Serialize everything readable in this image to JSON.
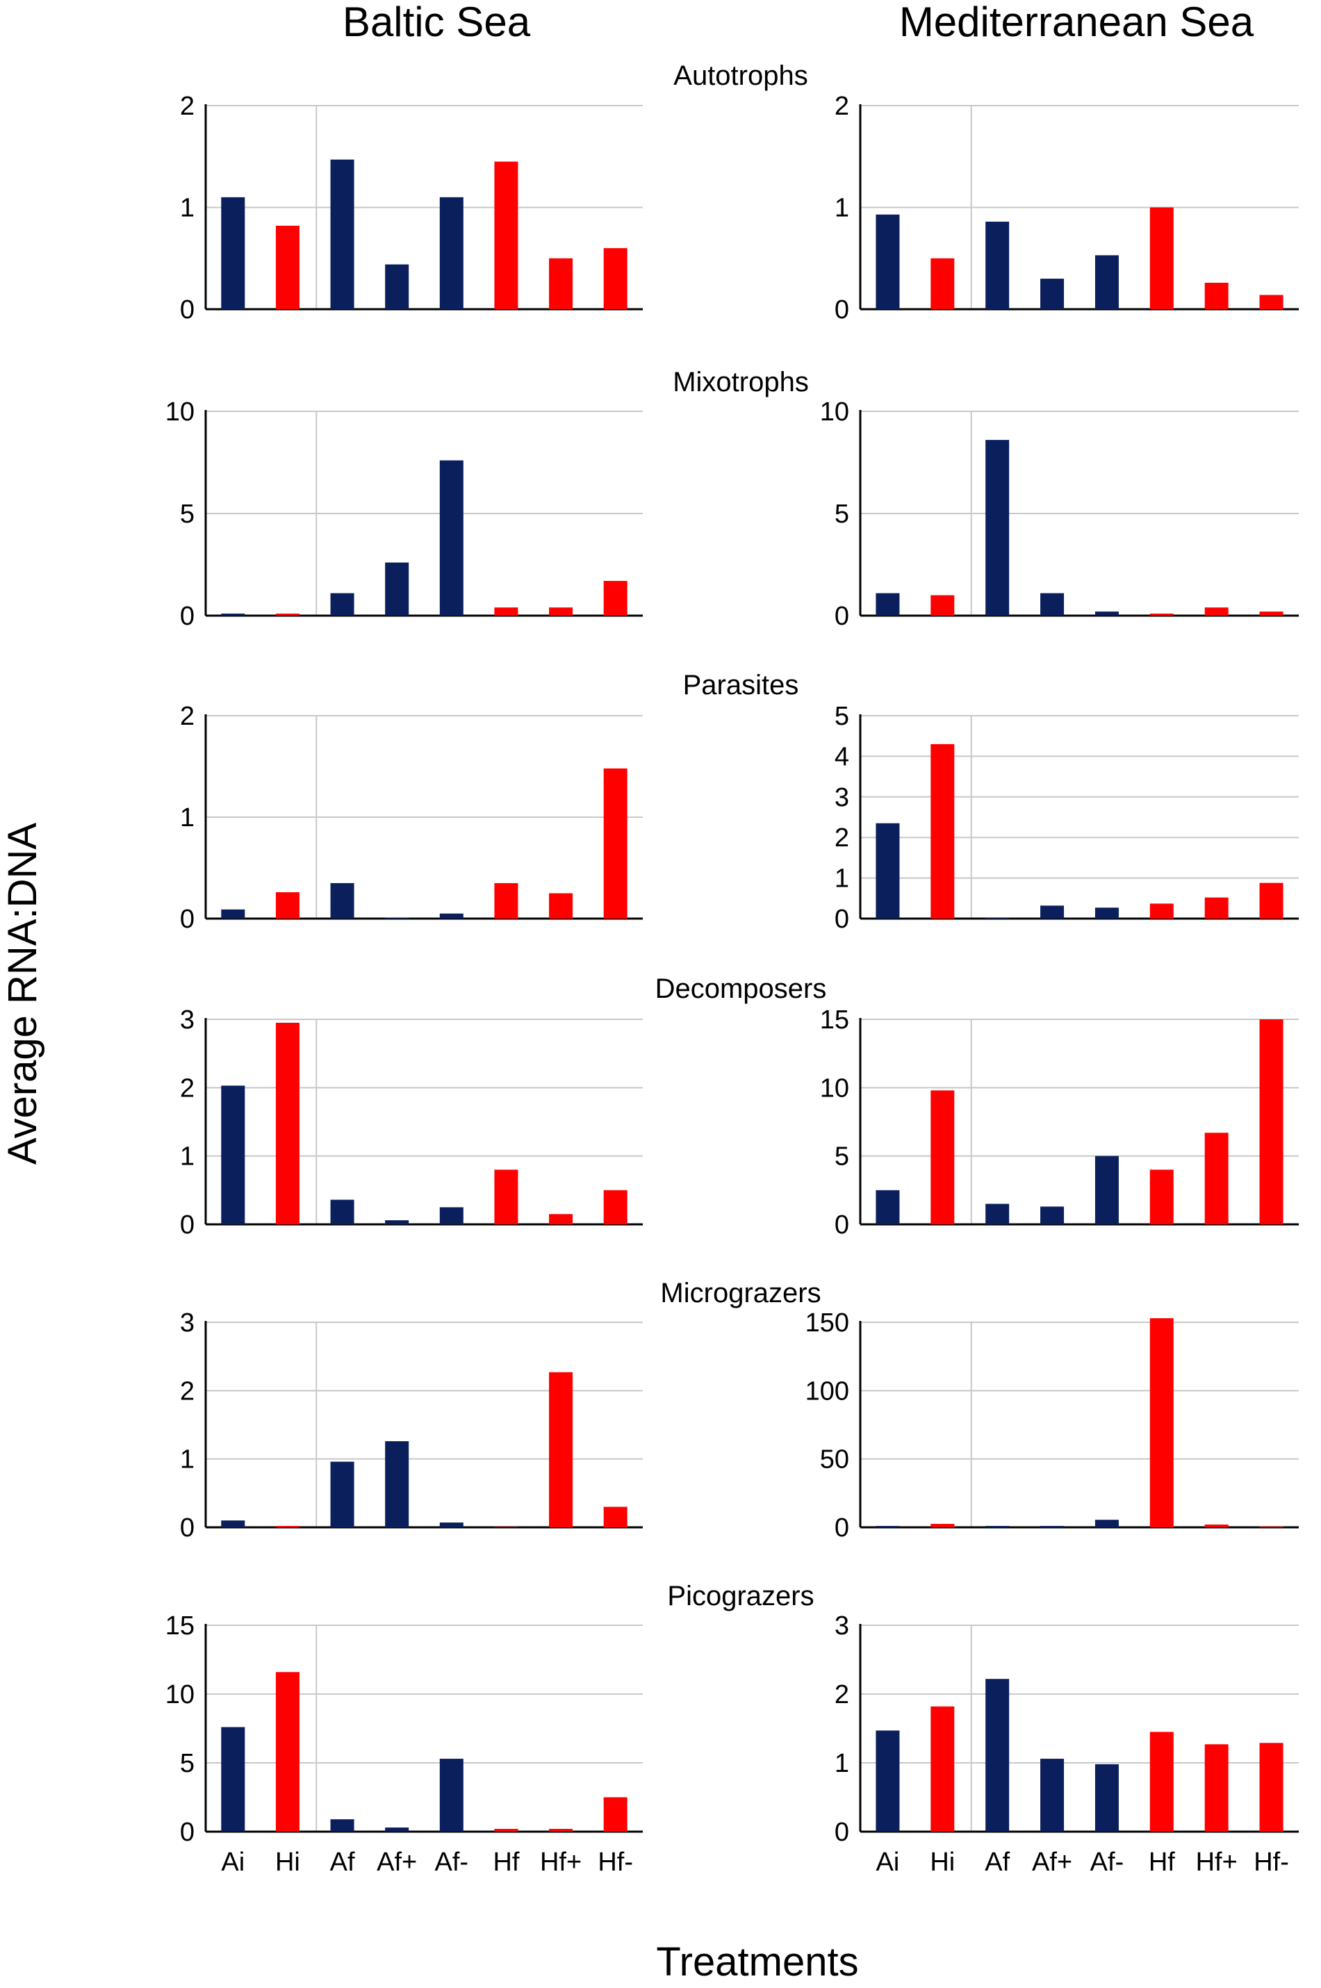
{
  "figure": {
    "column_titles": [
      "Baltic Sea",
      "Mediterranean Sea"
    ],
    "ylabel": "Average RNA:DNA",
    "xlabel": "Treatments",
    "colors": {
      "ambient": "#0a1f5c",
      "heated": "#ff0000",
      "grid": "#c8c8c8",
      "axis": "#000000"
    }
  },
  "chart_data": [
    {
      "type": "bar",
      "column": "Baltic Sea",
      "group": "Autotrophs",
      "title": "Autotrophs",
      "categories": [
        "Ai",
        "Hi",
        "Af",
        "Af+",
        "Af-",
        "Hf",
        "Hf+",
        "Hf-"
      ],
      "values": [
        1.1,
        0.82,
        1.47,
        0.44,
        1.1,
        1.45,
        0.5,
        0.6
      ],
      "ylim": [
        0,
        2
      ],
      "yticks": [
        "0",
        "1",
        "2"
      ],
      "show_xticklabels": false
    },
    {
      "type": "bar",
      "column": "Mediterranean Sea",
      "group": "Autotrophs",
      "title": "",
      "categories": [
        "Ai",
        "Hi",
        "Af",
        "Af+",
        "Af-",
        "Hf",
        "Hf+",
        "Hf-"
      ],
      "values": [
        0.93,
        0.5,
        0.86,
        0.3,
        0.53,
        1.0,
        0.26,
        0.14
      ],
      "ylim": [
        0,
        2
      ],
      "yticks": [
        "0",
        "1",
        "2"
      ],
      "show_xticklabels": false
    },
    {
      "type": "bar",
      "column": "Baltic Sea",
      "group": "Mixotrophs",
      "title": "Mixotrophs",
      "categories": [
        "Ai",
        "Hi",
        "Af",
        "Af+",
        "Af-",
        "Hf",
        "Hf+",
        "Hf-"
      ],
      "values": [
        0.1,
        0.1,
        1.1,
        2.6,
        7.6,
        0.4,
        0.4,
        1.7
      ],
      "ylim": [
        0,
        10
      ],
      "yticks": [
        "0",
        "5",
        "10"
      ],
      "show_xticklabels": false
    },
    {
      "type": "bar",
      "column": "Mediterranean Sea",
      "group": "Mixotrophs",
      "title": "",
      "categories": [
        "Ai",
        "Hi",
        "Af",
        "Af+",
        "Af-",
        "Hf",
        "Hf+",
        "Hf-"
      ],
      "values": [
        1.1,
        1.0,
        8.6,
        1.1,
        0.2,
        0.1,
        0.4,
        0.2
      ],
      "ylim": [
        0,
        10
      ],
      "yticks": [
        "0",
        "5",
        "10"
      ],
      "show_xticklabels": false
    },
    {
      "type": "bar",
      "column": "Baltic Sea",
      "group": "Parasites",
      "title": "Parasites",
      "categories": [
        "Ai",
        "Hi",
        "Af",
        "Af+",
        "Af-",
        "Hf",
        "Hf+",
        "Hf-"
      ],
      "values": [
        0.09,
        0.26,
        0.35,
        0.01,
        0.05,
        0.35,
        0.25,
        1.48
      ],
      "ylim": [
        0,
        2
      ],
      "yticks": [
        "0",
        "1",
        "2"
      ],
      "show_xticklabels": false
    },
    {
      "type": "bar",
      "column": "Mediterranean Sea",
      "group": "Parasites",
      "title": "",
      "categories": [
        "Ai",
        "Hi",
        "Af",
        "Af+",
        "Af-",
        "Hf",
        "Hf+",
        "Hf-"
      ],
      "values": [
        2.35,
        4.3,
        0.02,
        0.32,
        0.27,
        0.37,
        0.52,
        0.88
      ],
      "ylim": [
        0,
        5
      ],
      "yticks": [
        "0",
        "1",
        "2",
        "3",
        "4",
        "5"
      ],
      "show_xticklabels": false
    },
    {
      "type": "bar",
      "column": "Baltic Sea",
      "group": "Decomposers",
      "title": "Decomposers",
      "categories": [
        "Ai",
        "Hi",
        "Af",
        "Af+",
        "Af-",
        "Hf",
        "Hf+",
        "Hf-"
      ],
      "values": [
        2.03,
        2.95,
        0.36,
        0.06,
        0.25,
        0.8,
        0.15,
        0.5
      ],
      "ylim": [
        0,
        3
      ],
      "yticks": [
        "0",
        "1",
        "2",
        "3"
      ],
      "show_xticklabels": false
    },
    {
      "type": "bar",
      "column": "Mediterranean Sea",
      "group": "Decomposers",
      "title": "",
      "categories": [
        "Ai",
        "Hi",
        "Af",
        "Af+",
        "Af-",
        "Hf",
        "Hf+",
        "Hf-"
      ],
      "values": [
        2.5,
        9.8,
        1.5,
        1.3,
        5.0,
        4.0,
        6.7,
        15.0
      ],
      "ylim": [
        0,
        15
      ],
      "yticks": [
        "0",
        "5",
        "10",
        "15"
      ],
      "show_xticklabels": false
    },
    {
      "type": "bar",
      "column": "Baltic Sea",
      "group": "Micrograzers",
      "title": "Micrograzers",
      "categories": [
        "Ai",
        "Hi",
        "Af",
        "Af+",
        "Af-",
        "Hf",
        "Hf+",
        "Hf-"
      ],
      "values": [
        0.1,
        0.02,
        0.96,
        1.26,
        0.07,
        0.0,
        2.27,
        0.3
      ],
      "ylim": [
        0,
        3
      ],
      "yticks": [
        "0",
        "1",
        "2",
        "3"
      ],
      "show_xticklabels": false
    },
    {
      "type": "bar",
      "column": "Mediterranean Sea",
      "group": "Micrograzers",
      "title": "",
      "categories": [
        "Ai",
        "Hi",
        "Af",
        "Af+",
        "Af-",
        "Hf",
        "Hf+",
        "Hf-"
      ],
      "values": [
        1.0,
        2.5,
        1.0,
        1.0,
        5.5,
        153,
        2.0,
        0.5
      ],
      "ylim": [
        0,
        150
      ],
      "yticks": [
        "0",
        "50",
        "100",
        "150"
      ],
      "show_xticklabels": false
    },
    {
      "type": "bar",
      "column": "Baltic Sea",
      "group": "Picograzers",
      "title": "Picograzers",
      "categories": [
        "Ai",
        "Hi",
        "Af",
        "Af+",
        "Af-",
        "Hf",
        "Hf+",
        "Hf-"
      ],
      "values": [
        7.6,
        11.6,
        0.9,
        0.3,
        5.3,
        0.2,
        0.2,
        2.5
      ],
      "ylim": [
        0,
        15
      ],
      "yticks": [
        "0",
        "5",
        "10",
        "15"
      ],
      "show_xticklabels": true
    },
    {
      "type": "bar",
      "column": "Mediterranean Sea",
      "group": "Picograzers",
      "title": "",
      "categories": [
        "Ai",
        "Hi",
        "Af",
        "Af+",
        "Af-",
        "Hf",
        "Hf+",
        "Hf-"
      ],
      "values": [
        1.47,
        1.82,
        2.22,
        1.06,
        0.98,
        1.45,
        1.27,
        1.29
      ],
      "ylim": [
        0,
        3
      ],
      "yticks": [
        "0",
        "1",
        "2",
        "3"
      ],
      "show_xticklabels": true
    }
  ]
}
